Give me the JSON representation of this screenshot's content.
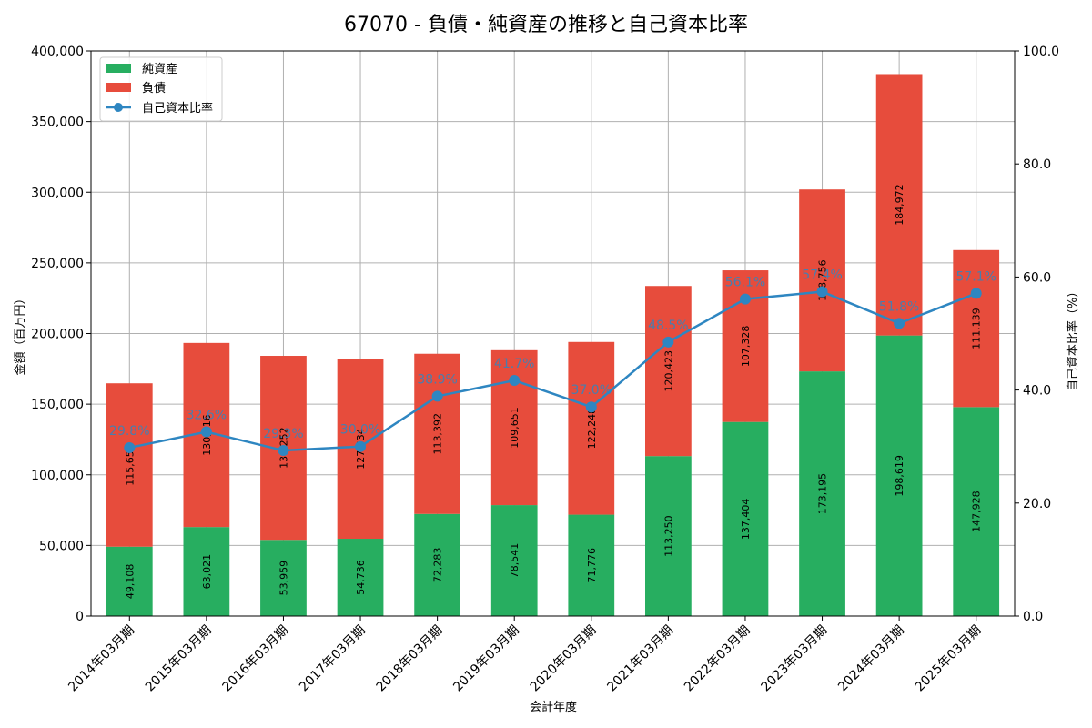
{
  "chart_data": {
    "type": "bar",
    "stacked": true,
    "title": "67070 - 負債・純資産の推移と自己資本比率",
    "xlabel": "会計年度",
    "ylabel": "金額（百万円）",
    "y2label": "自己資本比率（%）",
    "ylim": [
      0,
      400000
    ],
    "y2lim": [
      0,
      100
    ],
    "yticks": [
      "0",
      "50,000",
      "100,000",
      "150,000",
      "200,000",
      "250,000",
      "300,000",
      "350,000",
      "400,000"
    ],
    "y2ticks": [
      "0.0",
      "20.0",
      "40.0",
      "60.0",
      "80.0",
      "100.0"
    ],
    "grid": true,
    "legend_position": "top-left",
    "categories": [
      "2014年03月期",
      "2015年03月期",
      "2016年03月期",
      "2017年03月期",
      "2018年03月期",
      "2019年03月期",
      "2020年03月期",
      "2021年03月期",
      "2022年03月期",
      "2023年03月期",
      "2024年03月期",
      "2025年03月期"
    ],
    "series": [
      {
        "name": "純資産",
        "color": "#27ae60",
        "values": [
          49108,
          63021,
          53959,
          54736,
          72283,
          78541,
          71776,
          113250,
          137404,
          173195,
          198619,
          147928
        ],
        "labels": [
          "49,108",
          "63,021",
          "53,959",
          "54,736",
          "72,283",
          "78,541",
          "71,776",
          "113,250",
          "137,404",
          "173,195",
          "198,619",
          "147,928"
        ]
      },
      {
        "name": "負債",
        "color": "#e74c3c",
        "values": [
          115651,
          130316,
          130252,
          127534,
          113392,
          109651,
          122248,
          120423,
          107328,
          128756,
          184972,
          111139
        ],
        "labels": [
          "115,651",
          "130,316",
          "130,252",
          "127,534",
          "113,392",
          "109,651",
          "122,248",
          "120,423",
          "107,328",
          "128,756",
          "184,972",
          "111,139"
        ]
      },
      {
        "name": "自己資本比率",
        "type": "line",
        "axis": "right",
        "color": "#2e86c1",
        "values": [
          29.8,
          32.6,
          29.3,
          30.0,
          38.9,
          41.7,
          37.0,
          48.5,
          56.1,
          57.4,
          51.8,
          57.1
        ],
        "labels": [
          "29.8%",
          "32.6%",
          "29.3%",
          "30.0%",
          "38.9%",
          "41.7%",
          "37.0%",
          "48.5%",
          "56.1%",
          "57.4%",
          "51.8%",
          "57.1%"
        ]
      }
    ]
  }
}
